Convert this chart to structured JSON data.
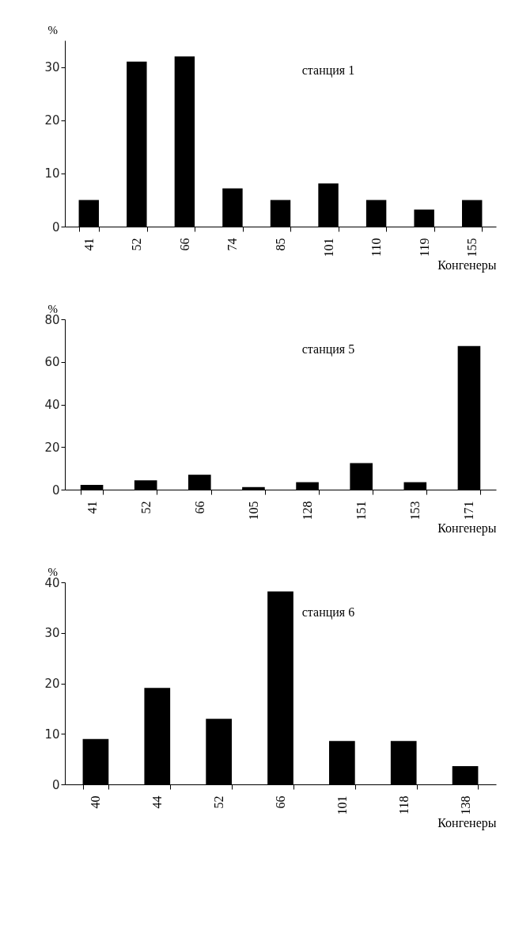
{
  "chart_data": [
    {
      "type": "bar",
      "annotations": [
        "станция 1"
      ],
      "ylabel": "%",
      "xlabel": "Конгенеры",
      "categories": [
        "41",
        "52",
        "66",
        "74",
        "85",
        "101",
        "110",
        "119",
        "155"
      ],
      "values": [
        5,
        31,
        32,
        7.2,
        5,
        8.1,
        5,
        3.2,
        5
      ],
      "color": "#000000",
      "ylim": [
        0,
        35
      ],
      "yticks": [
        0,
        10,
        20,
        30
      ],
      "grid": false
    },
    {
      "type": "bar",
      "annotations": [
        "станция 5"
      ],
      "ylabel": "%",
      "xlabel": "Конгенеры",
      "categories": [
        "41",
        "52",
        "66",
        "105",
        "128",
        "151",
        "153",
        "171"
      ],
      "values": [
        2.2,
        4.4,
        7,
        1.2,
        3.5,
        12.5,
        3.5,
        67.4
      ],
      "color": "#000000",
      "ylim": [
        0,
        80
      ],
      "yticks": [
        0,
        20,
        40,
        60,
        80
      ],
      "grid": false
    },
    {
      "type": "bar",
      "annotations": [
        "станция 6"
      ],
      "ylabel": "%",
      "xlabel": "Конгенеры",
      "categories": [
        "40",
        "44",
        "52",
        "66",
        "101",
        "118",
        "138"
      ],
      "values": [
        9,
        19.1,
        13,
        38.2,
        8.6,
        8.6,
        3.6
      ],
      "color": "#000000",
      "ylim": [
        0,
        40
      ],
      "yticks": [
        0,
        10,
        20,
        30,
        40
      ],
      "grid": false
    }
  ]
}
